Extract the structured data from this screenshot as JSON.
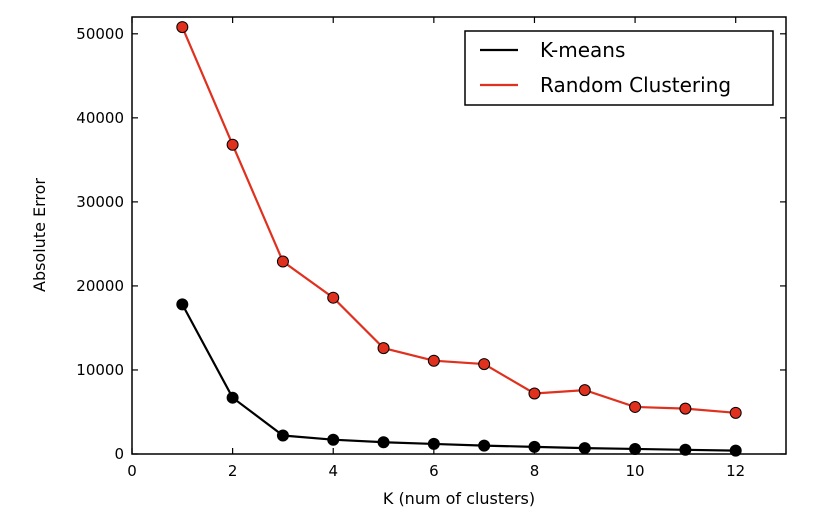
{
  "chart_data": {
    "type": "line",
    "title": "",
    "xlabel": "K (num of clusters)",
    "ylabel": "Absolute Error",
    "xlim": [
      0,
      13
    ],
    "ylim": [
      0,
      52000
    ],
    "xticks": [
      0,
      2,
      4,
      6,
      8,
      10,
      12
    ],
    "yticks": [
      0,
      10000,
      20000,
      30000,
      40000,
      50000
    ],
    "grid": false,
    "legend_position": "top-right",
    "x": [
      1,
      2,
      3,
      4,
      5,
      6,
      7,
      8,
      9,
      10,
      11,
      12
    ],
    "series": [
      {
        "name": "K-means",
        "color": "#000000",
        "values": [
          17800,
          6700,
          2200,
          1700,
          1400,
          1200,
          1000,
          850,
          700,
          600,
          500,
          400
        ]
      },
      {
        "name": "Random Clustering",
        "color": "#e0301e",
        "values": [
          50800,
          36800,
          22900,
          18600,
          12600,
          11100,
          10700,
          7200,
          7600,
          5600,
          5400,
          4900
        ]
      }
    ]
  }
}
